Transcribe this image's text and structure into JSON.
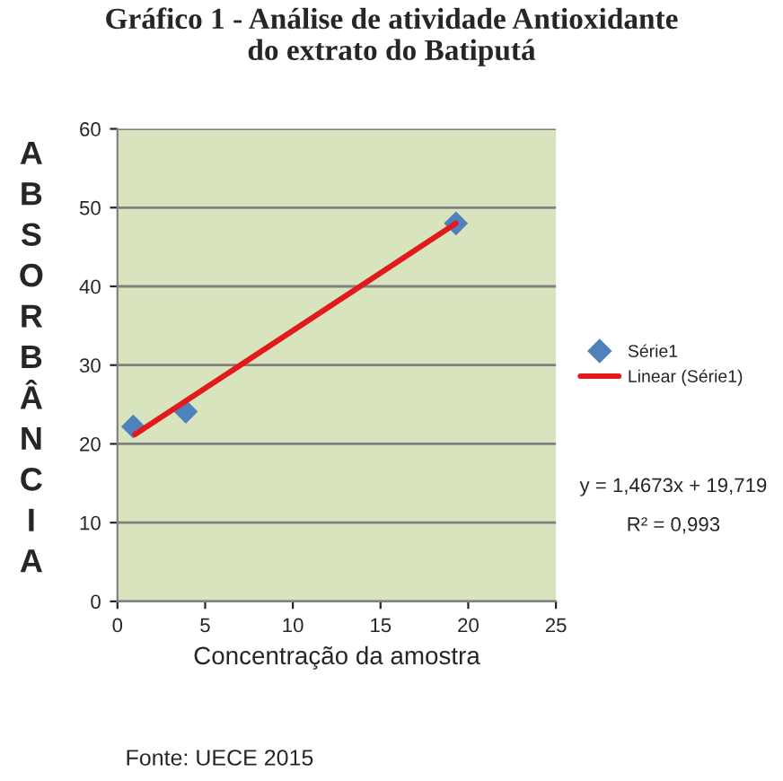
{
  "chart_data": {
    "type": "scatter",
    "title": "Gráfico 1 - Análise de atividade Antioxidante\ndo extrato do Batiputá",
    "xlabel": "Concentração da amostra",
    "ylabel": "ABSORBÂNCIA",
    "series": [
      {
        "name": "Série1",
        "color": "#4f81bd",
        "marker": "diamond",
        "x": [
          0.9,
          3.9,
          19.3
        ],
        "values": [
          22.2,
          24.1,
          48.0
        ]
      },
      {
        "name": "Linear (Série1)",
        "type": "line",
        "color": "#e31a1c",
        "marker": "none",
        "x": [
          1,
          19.3
        ],
        "values": [
          21.2,
          48.0
        ]
      }
    ],
    "xlim": [
      0,
      25
    ],
    "xticks": [
      0,
      5,
      10,
      15,
      20,
      25
    ],
    "ylim": [
      0,
      60
    ],
    "yticks": [
      0,
      10,
      20,
      30,
      40,
      50,
      60
    ],
    "grid": "y",
    "legend": "right",
    "annotations": [
      "y = 1,4673x + 19,719",
      "R² = 0,993",
      "Fonte: UECE 2015"
    ]
  }
}
